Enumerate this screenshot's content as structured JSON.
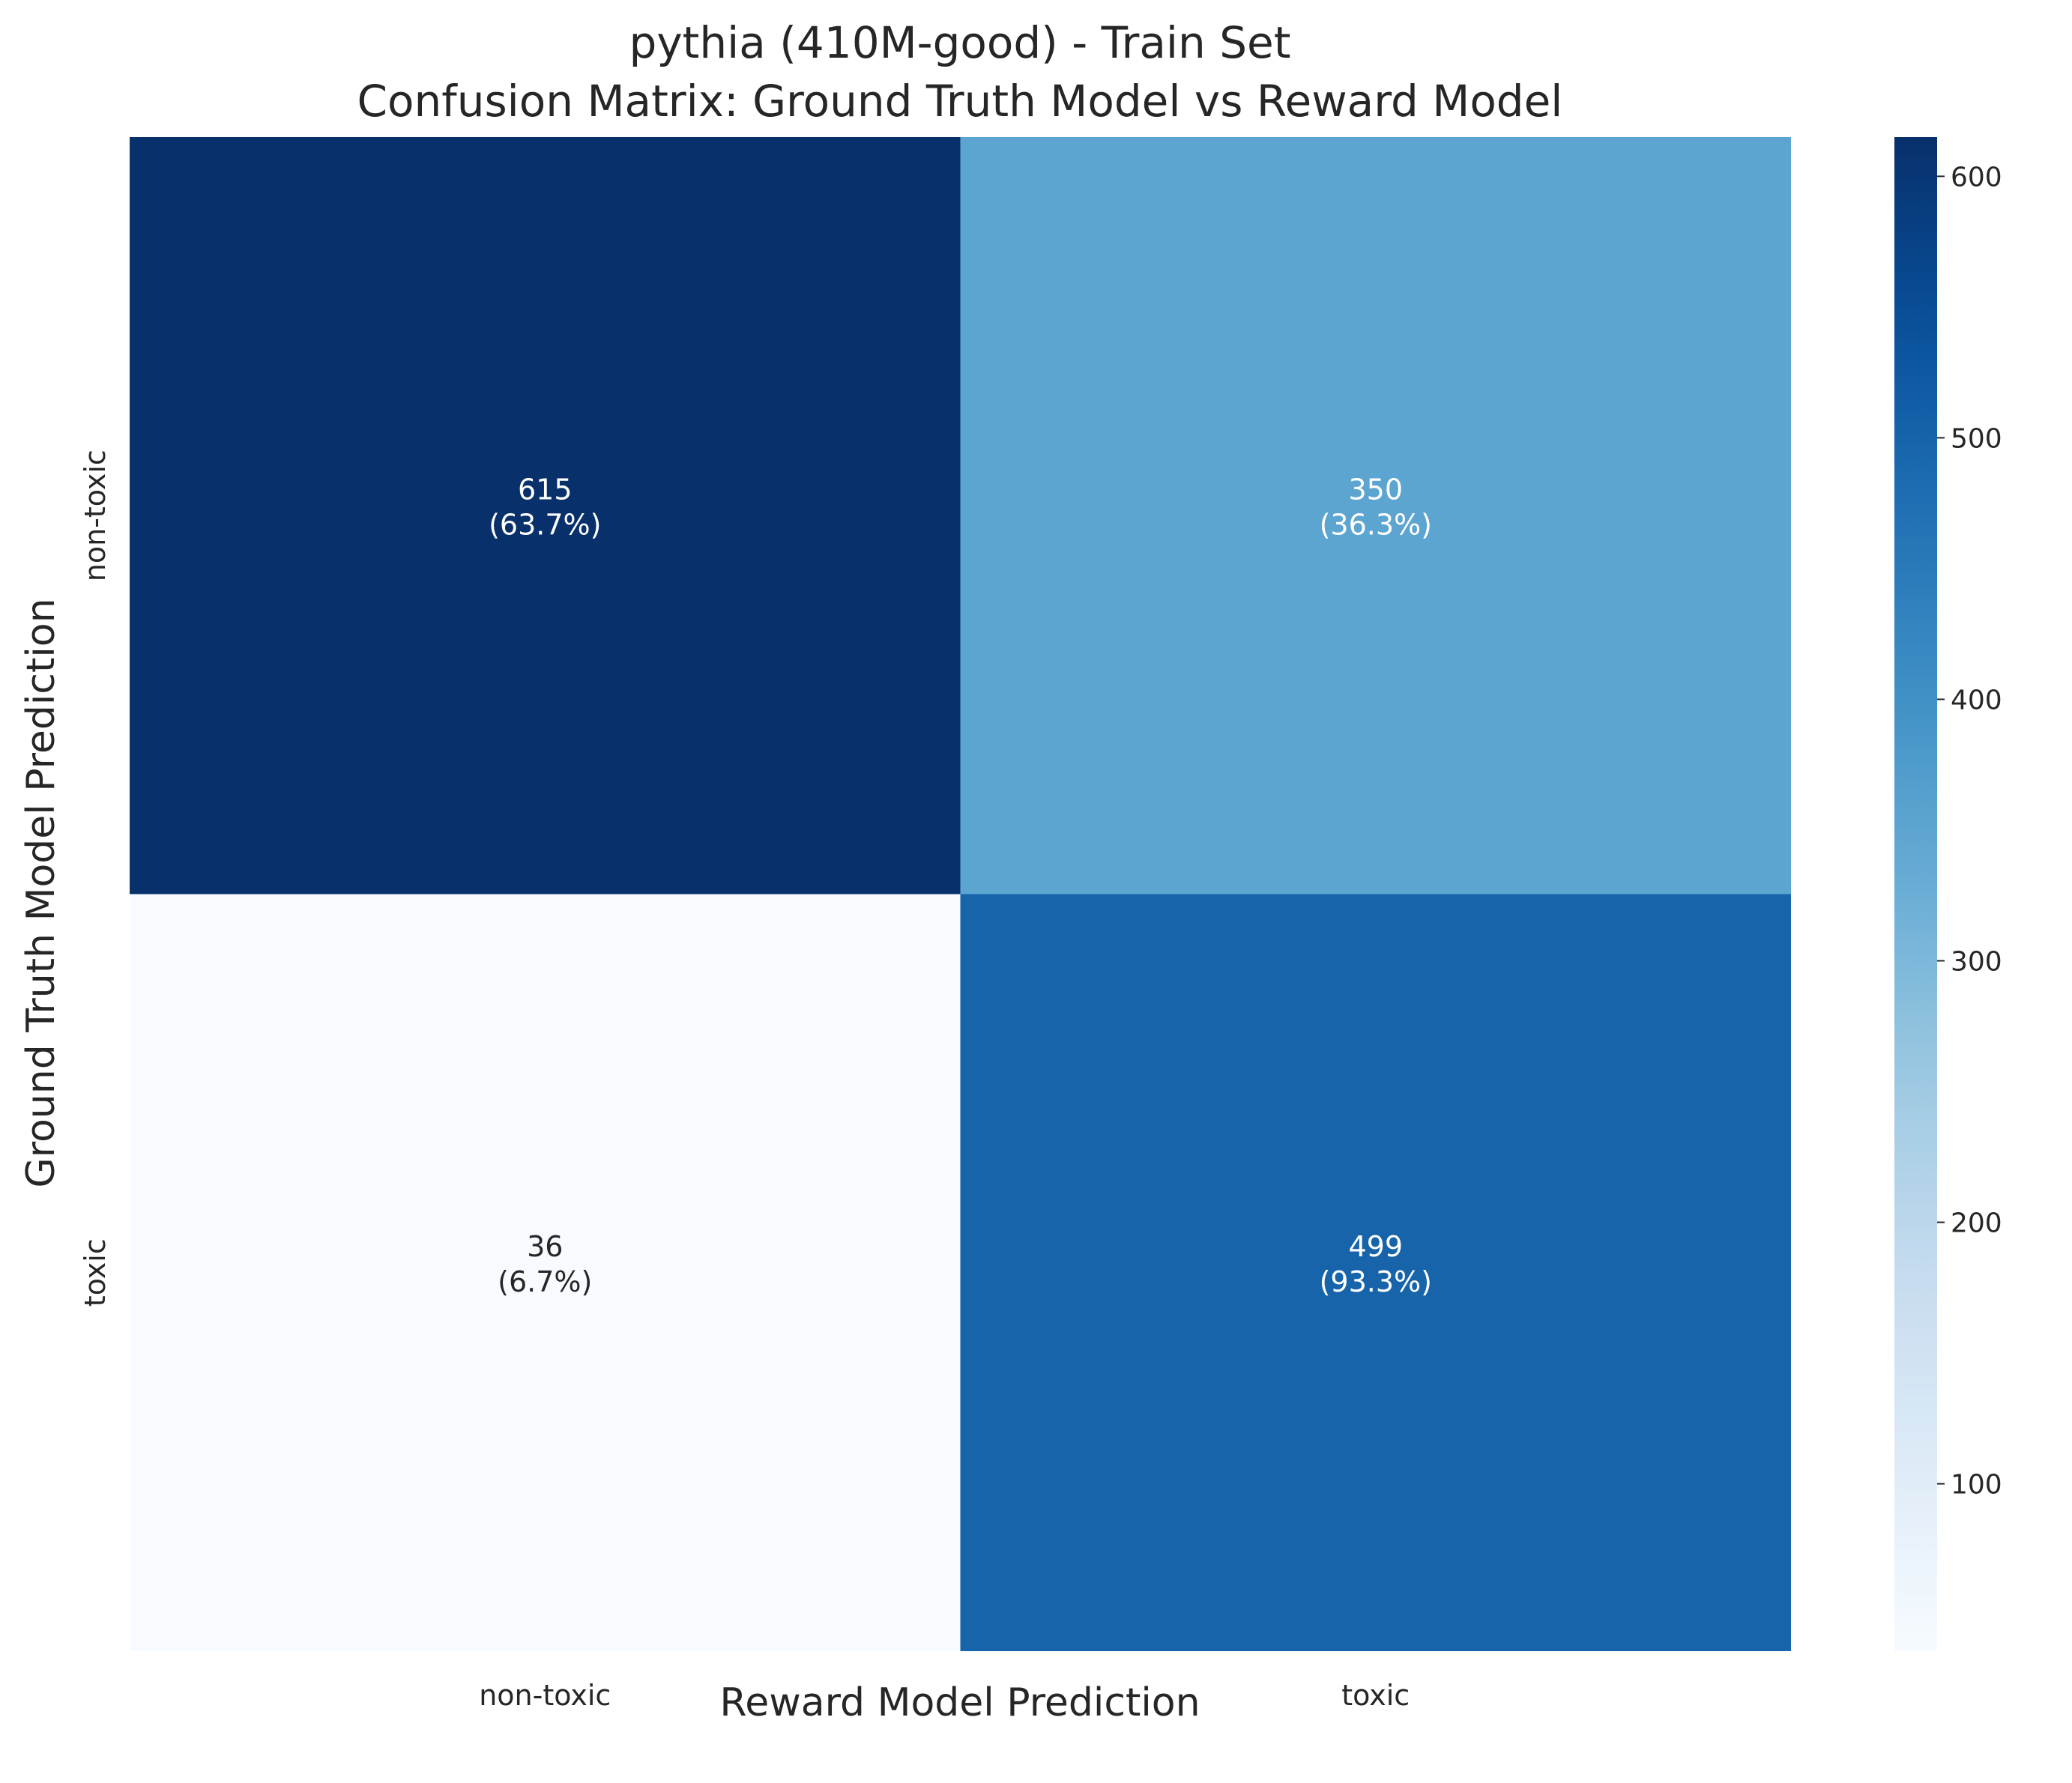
{
  "chart_data": {
    "type": "heatmap",
    "title_line1": "pythia (410M-good) - Train Set",
    "title_line2": "Confusion Matrix: Ground Truth Model vs Reward Model",
    "xlabel": "Reward Model Prediction",
    "ylabel": "Ground Truth Model Prediction",
    "x_categories": [
      "non-toxic",
      "toxic"
    ],
    "y_categories": [
      "non-toxic",
      "toxic"
    ],
    "cells": [
      [
        {
          "count": "615",
          "percent": "(63.7%)"
        },
        {
          "count": "350",
          "percent": "(36.3%)"
        }
      ],
      [
        {
          "count": "36",
          "percent": "(6.7%)"
        },
        {
          "count": "499",
          "percent": "(93.3%)"
        }
      ]
    ],
    "values": [
      [
        615,
        350
      ],
      [
        36,
        499
      ]
    ],
    "colormap": "Blues",
    "colorbar": {
      "range": [
        36,
        615
      ],
      "ticks": [
        100,
        200,
        300,
        400,
        500,
        600
      ],
      "tick_labels": [
        "100",
        "200",
        "300",
        "400",
        "500",
        "600"
      ]
    },
    "colors": {
      "dark": "#08306b",
      "light": "#f7fbff",
      "text_dark": "#262626",
      "text_light": "#ffffff"
    }
  }
}
